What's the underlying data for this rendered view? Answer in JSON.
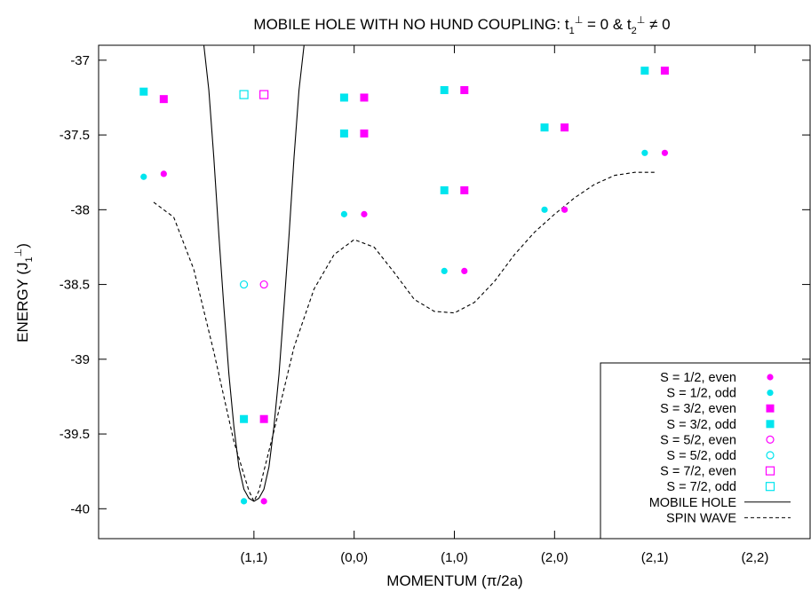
{
  "chart_data": {
    "type": "scatter",
    "title": {
      "prefix": "MOBILE HOLE WITH NO HUND COUPLING: t",
      "sub1": "1",
      "sup1": "⊥",
      "mid": " = 0 & t",
      "sub2": "2",
      "sup2": "⊥",
      "suffix": " ≠ 0"
    },
    "xlabel": "MOMENTUM (π/2a)",
    "ylabel": {
      "prefix": "ENERGY (J",
      "sub": "1",
      "sup": "⊥",
      "suffix": ")"
    },
    "categories": [
      "(1,1)",
      "(0,0)",
      "(1,0)",
      "(2,0)",
      "(2,1)",
      "(2,2)"
    ],
    "xlim": [
      -1.55,
      5.55
    ],
    "ylim": [
      -40.2,
      -36.9
    ],
    "yticks": [
      -37,
      -37.5,
      -38,
      -38.5,
      -39,
      -39.5,
      -40
    ],
    "ytick_labels": [
      "-37",
      "-37.5",
      "-38",
      "-38.5",
      "-39",
      "-39.5",
      "-40"
    ],
    "grid": false,
    "legend_position": "bottom-right",
    "colors": {
      "magenta": "#ff00ff",
      "cyan": "#00e5ee",
      "line": "#000000"
    },
    "series": [
      {
        "name": "S = 1/2, even",
        "marker": "filled-circle",
        "color": "#ff00ff",
        "x": [
          -0.9,
          0.1,
          1.1,
          2.1,
          3.1,
          4.1
        ],
        "y": [
          -37.76,
          -39.95,
          -38.03,
          -38.41,
          -38.0,
          -37.62
        ]
      },
      {
        "name": "S = 1/2, odd",
        "marker": "filled-circle",
        "color": "#00e5ee",
        "x": [
          -1.1,
          -0.1,
          0.9,
          1.9,
          2.9,
          3.9
        ],
        "y": [
          -37.78,
          -39.95,
          -38.03,
          -38.41,
          -38.0,
          -37.62
        ]
      },
      {
        "name": "S = 3/2, even",
        "marker": "filled-square",
        "color": "#ff00ff",
        "x": [
          -0.9,
          0.1,
          1.1,
          1.1,
          2.1,
          2.1,
          3.1,
          4.1
        ],
        "y": [
          -37.26,
          -39.4,
          -37.25,
          -37.49,
          -37.2,
          -37.87,
          -37.45,
          -37.07
        ]
      },
      {
        "name": "S = 3/2, odd",
        "marker": "filled-square",
        "color": "#00e5ee",
        "x": [
          -1.1,
          -0.1,
          0.9,
          0.9,
          1.9,
          1.9,
          2.9,
          3.9
        ],
        "y": [
          -37.21,
          -39.4,
          -37.25,
          -37.49,
          -37.2,
          -37.87,
          -37.45,
          -37.07
        ]
      },
      {
        "name": "S = 5/2, even",
        "marker": "open-circle",
        "color": "#ff00ff",
        "x": [
          0.1
        ],
        "y": [
          -38.5
        ]
      },
      {
        "name": "S = 5/2, odd",
        "marker": "open-circle",
        "color": "#00e5ee",
        "x": [
          -0.1
        ],
        "y": [
          -38.5
        ]
      },
      {
        "name": "S = 7/2, even",
        "marker": "open-square",
        "color": "#ff00ff",
        "x": [
          0.1
        ],
        "y": [
          -37.23
        ]
      },
      {
        "name": "S = 7/2, odd",
        "marker": "open-square",
        "color": "#00e5ee",
        "x": [
          -0.1
        ],
        "y": [
          -37.23
        ]
      }
    ],
    "lines": [
      {
        "name": "MOBILE HOLE",
        "style": "solid",
        "x": [
          -0.5,
          -0.45,
          -0.4,
          -0.35,
          -0.3,
          -0.25,
          -0.2,
          -0.15,
          -0.1,
          -0.05,
          0,
          0.05,
          0.1,
          0.15,
          0.2,
          0.25,
          0.3,
          0.35,
          0.4,
          0.45,
          0.5
        ],
        "y": [
          -36.9,
          -37.2,
          -37.65,
          -38.17,
          -38.65,
          -39.1,
          -39.45,
          -39.72,
          -39.87,
          -39.93,
          -39.95,
          -39.93,
          -39.87,
          -39.72,
          -39.45,
          -39.1,
          -38.65,
          -38.17,
          -37.65,
          -37.2,
          -36.9
        ]
      },
      {
        "name": "SPIN WAVE",
        "style": "dashed",
        "x": [
          -1.0,
          -0.8,
          -0.6,
          -0.4,
          -0.2,
          -0.05,
          0,
          0.05,
          0.2,
          0.4,
          0.6,
          0.8,
          1.0,
          1.2,
          1.4,
          1.6,
          1.8,
          2.0,
          2.2,
          2.4,
          2.6,
          2.8,
          3.0,
          3.2,
          3.4,
          3.6,
          3.8,
          4.0
        ],
        "y": [
          -37.95,
          -38.05,
          -38.4,
          -38.95,
          -39.55,
          -39.88,
          -39.95,
          -39.88,
          -39.48,
          -38.92,
          -38.53,
          -38.3,
          -38.2,
          -38.25,
          -38.42,
          -38.6,
          -38.68,
          -38.69,
          -38.62,
          -38.48,
          -38.3,
          -38.15,
          -38.03,
          -37.92,
          -37.83,
          -37.77,
          -37.75,
          -37.75
        ]
      }
    ]
  }
}
